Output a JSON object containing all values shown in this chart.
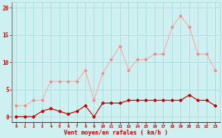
{
  "rafales_hours": [
    0,
    1,
    2,
    3,
    4,
    5,
    6,
    7,
    8,
    9,
    10,
    11,
    12,
    13,
    14,
    15,
    16,
    17,
    18,
    19,
    20,
    21,
    22,
    23
  ],
  "rafales_vals": [
    2.0,
    2.0,
    3.0,
    3.0,
    6.5,
    6.5,
    6.5,
    6.5,
    8.5,
    3.0,
    8.0,
    10.5,
    13.0,
    8.5,
    10.5,
    10.5,
    11.5,
    11.5,
    16.5,
    18.5,
    16.5,
    11.5,
    11.5,
    8.5
  ],
  "moyen_hours": [
    0,
    1,
    2,
    3,
    4,
    5,
    6,
    7,
    8,
    9,
    10,
    11,
    12,
    13,
    14,
    15,
    16,
    17,
    18,
    19,
    20,
    21,
    22,
    23
  ],
  "moyen_vals": [
    0.0,
    0.0,
    0.0,
    1.0,
    1.5,
    1.0,
    0.5,
    1.0,
    2.0,
    0.0,
    2.5,
    2.5,
    2.5,
    3.0,
    3.0,
    3.0,
    3.0,
    3.0,
    3.0,
    3.0,
    4.0,
    3.0,
    3.0,
    2.0
  ],
  "bg_color": "#cff0f0",
  "grid_color": "#aadddd",
  "line_color_rafales": "#ffaaaa",
  "marker_color_rafales": "#ee8888",
  "line_color_moyen": "#cc0000",
  "marker_color_moyen": "#cc0000",
  "xlabel": "Vent moyen/en rafales ( km/h )",
  "ylim": [
    -1,
    21
  ],
  "yticks": [
    0,
    5,
    10,
    15,
    20
  ],
  "xticks": [
    0,
    1,
    2,
    3,
    4,
    5,
    6,
    7,
    8,
    9,
    10,
    11,
    12,
    13,
    14,
    15,
    16,
    17,
    18,
    19,
    20,
    21,
    22,
    23
  ],
  "tick_color": "#cc0000",
  "label_color": "#cc0000",
  "spine_color": "#888888"
}
